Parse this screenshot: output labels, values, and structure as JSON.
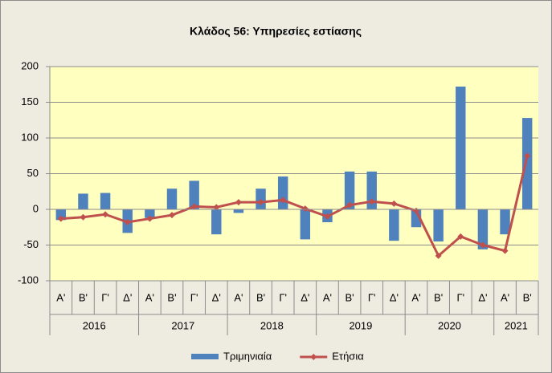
{
  "chart_data": {
    "type": "bar_line",
    "title": "Κλάδος 56: Υπηρεσίες εστίασης",
    "groups": [
      {
        "name": "2016",
        "categories": [
          "Α'",
          "Β'",
          "Γ'",
          "Δ'"
        ]
      },
      {
        "name": "2017",
        "categories": [
          "Α'",
          "Β'",
          "Γ'",
          "Δ'"
        ]
      },
      {
        "name": "2018",
        "categories": [
          "Α'",
          "Β'",
          "Γ'",
          "Δ'"
        ]
      },
      {
        "name": "2019",
        "categories": [
          "Α'",
          "Β'",
          "Γ'",
          "Δ'"
        ]
      },
      {
        "name": "2020",
        "categories": [
          "Α'",
          "Β'",
          "Γ'",
          "Δ'"
        ]
      },
      {
        "name": "2021",
        "categories": [
          "Α'",
          "Β'"
        ]
      }
    ],
    "series": [
      {
        "name": "Τριμηνιαία",
        "kind": "bar",
        "color": "#4f81bd",
        "values": [
          -15,
          22,
          23,
          -33,
          -12,
          29,
          40,
          -35,
          -5,
          29,
          46,
          -42,
          -18,
          53,
          53,
          -44,
          -25,
          -45,
          172,
          -56,
          -35,
          128
        ]
      },
      {
        "name": "Ετήσια",
        "kind": "line",
        "color": "#c0504d",
        "values": [
          -13,
          -11,
          -7,
          -18,
          -13,
          -8,
          4,
          3,
          10,
          10,
          13,
          1,
          -10,
          6,
          11,
          8,
          -2,
          -65,
          -38,
          -50,
          -58,
          75
        ]
      }
    ],
    "ylim": [
      -100,
      200
    ],
    "yticks": [
      -100,
      -50,
      0,
      50,
      100,
      150,
      200
    ],
    "grid": true,
    "legend": "bottom"
  }
}
